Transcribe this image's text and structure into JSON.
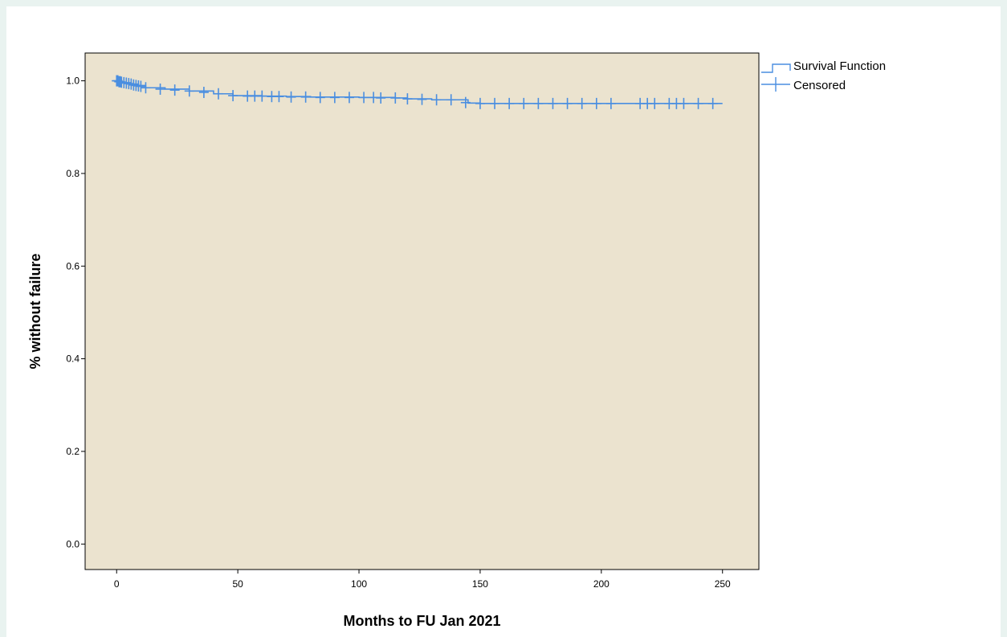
{
  "chart_data": {
    "type": "line",
    "xlabel": "Months to FU Jan 2021",
    "ylabel": "% without failure",
    "xlim": [
      -13,
      265
    ],
    "ylim": [
      -0.055,
      1.06
    ],
    "x_ticks": [
      "0",
      "50",
      "100",
      "150",
      "200",
      "250"
    ],
    "y_ticks": [
      "0.0",
      "0.2",
      "0.4",
      "0.6",
      "0.8",
      "1.0"
    ],
    "plot_background": "#ebe3cf",
    "series_color": "#4a8ee0",
    "grid": false,
    "legend_position": "right",
    "legend": [
      "Survival Function",
      "Censored"
    ],
    "series": [
      {
        "name": "Survival Function",
        "x": [
          0,
          1,
          3,
          6,
          9,
          12,
          20,
          30,
          40,
          48,
          60,
          70,
          80,
          100,
          115,
          120,
          130,
          145,
          150,
          250
        ],
        "y": [
          1.0,
          0.998,
          0.996,
          0.993,
          0.99,
          0.985,
          0.982,
          0.978,
          0.972,
          0.968,
          0.967,
          0.966,
          0.965,
          0.964,
          0.963,
          0.961,
          0.959,
          0.952,
          0.951,
          0.951
        ],
        "step": true
      },
      {
        "name": "Censored",
        "x": [
          0,
          0.5,
          1,
          1.5,
          2,
          3,
          4,
          5,
          6,
          7,
          8,
          9,
          10,
          12,
          18,
          24,
          30,
          36,
          42,
          48,
          54,
          57,
          60,
          64,
          67,
          72,
          78,
          84,
          90,
          96,
          102,
          106,
          109,
          115,
          120,
          126,
          132,
          138,
          144,
          150,
          156,
          162,
          168,
          174,
          180,
          186,
          192,
          198,
          204,
          216,
          219,
          222,
          228,
          231,
          234,
          240,
          246
        ],
        "y": [
          1.0,
          1.0,
          0.998,
          0.998,
          0.997,
          0.996,
          0.995,
          0.994,
          0.993,
          0.991,
          0.99,
          0.989,
          0.988,
          0.985,
          0.982,
          0.98,
          0.978,
          0.975,
          0.972,
          0.968,
          0.967,
          0.967,
          0.967,
          0.966,
          0.966,
          0.965,
          0.965,
          0.964,
          0.964,
          0.964,
          0.964,
          0.964,
          0.963,
          0.963,
          0.961,
          0.96,
          0.959,
          0.959,
          0.953,
          0.951,
          0.951,
          0.951,
          0.951,
          0.951,
          0.951,
          0.951,
          0.951,
          0.951,
          0.951,
          0.951,
          0.951,
          0.951,
          0.951,
          0.951,
          0.951,
          0.951,
          0.951
        ]
      }
    ]
  }
}
